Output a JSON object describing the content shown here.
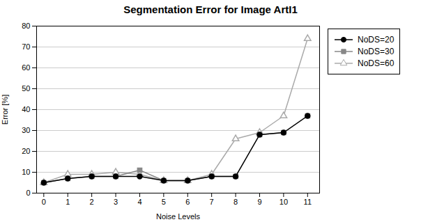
{
  "chart_data": {
    "type": "line",
    "title": "Segmentation Error for Image ArtI1",
    "xlabel": "Noise Levels",
    "ylabel": "Error [%]",
    "x": [
      0,
      1,
      2,
      3,
      4,
      5,
      6,
      7,
      8,
      9,
      10,
      11
    ],
    "series": [
      {
        "name": "NoDS=20",
        "color": "#000000",
        "marker": "circle",
        "values": [
          5,
          7,
          8,
          8,
          8,
          6,
          6,
          8,
          8,
          28,
          29,
          37
        ]
      },
      {
        "name": "NoDS=30",
        "color": "#888888",
        "marker": "square",
        "values": [
          5,
          7,
          8,
          8,
          11,
          6,
          6,
          8,
          8,
          28,
          29,
          37
        ]
      },
      {
        "name": "NoDS=60",
        "color": "#aaaaaa",
        "marker": "triangle",
        "values": [
          5,
          9,
          9,
          10,
          9,
          6,
          6,
          9,
          26,
          29,
          37,
          74
        ]
      }
    ],
    "xlim": [
      -0.3,
      11.5
    ],
    "ylim": [
      0,
      80
    ],
    "xticks": [
      0,
      1,
      2,
      3,
      4,
      5,
      6,
      7,
      8,
      9,
      10,
      11
    ],
    "yticks": [
      0,
      10,
      20,
      30,
      40,
      50,
      60,
      70,
      80
    ],
    "grid": true,
    "legend": "right"
  }
}
